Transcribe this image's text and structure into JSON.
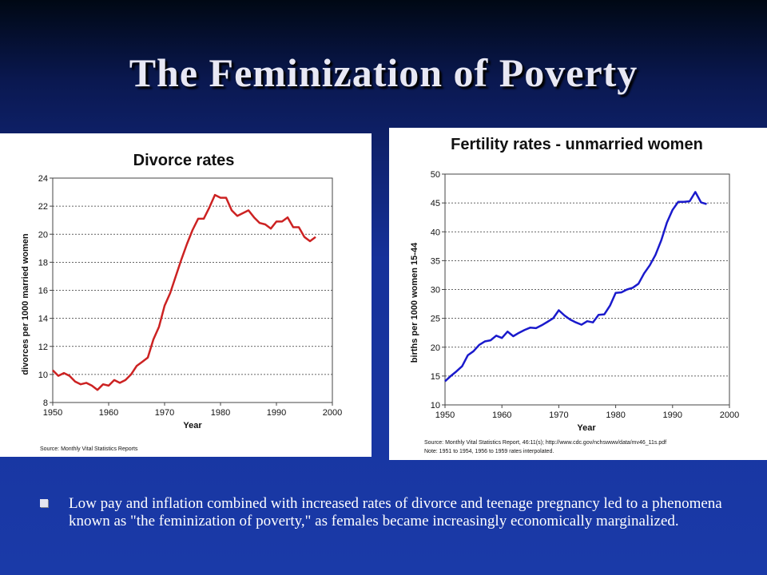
{
  "slide": {
    "title": "The Feminization of Poverty",
    "bullet": "Low pay and inflation combined with increased rates of divorce and teenage pregnancy led to a phenomena known as \"the feminization of poverty,\" as females became increasingly economically marginalized."
  },
  "colors": {
    "divorce_line": "#cc2222",
    "fertility_line": "#1a1acc",
    "background": "#1a3aa8"
  },
  "chart_data": [
    {
      "type": "line",
      "title": "Divorce rates",
      "xlabel": "Year",
      "ylabel": "divorces per 1000 married women",
      "xlim": [
        1950,
        2000
      ],
      "ylim": [
        8,
        24
      ],
      "xticks": [
        "1950",
        "1960",
        "1970",
        "1980",
        "1990",
        "2000"
      ],
      "yticks": [
        "8",
        "10",
        "12",
        "14",
        "16",
        "18",
        "20",
        "22",
        "24"
      ],
      "grid": "horizontal dashed",
      "source": "Source: Monthly Vital Statistics Reports",
      "series": [
        {
          "x": [
            1950,
            1951,
            1952,
            1953,
            1954,
            1955,
            1956,
            1957,
            1958,
            1959,
            1960,
            1961,
            1962,
            1963,
            1964,
            1965,
            1966,
            1967,
            1968,
            1969,
            1970,
            1971,
            1972,
            1973,
            1974,
            1975,
            1976,
            1977,
            1978,
            1979,
            1980,
            1981,
            1982,
            1983,
            1984,
            1985,
            1986,
            1987,
            1988,
            1989,
            1990,
            1991,
            1992,
            1993,
            1994,
            1995,
            1996,
            1997
          ],
          "y": [
            10.3,
            9.9,
            10.1,
            9.9,
            9.5,
            9.3,
            9.4,
            9.2,
            8.9,
            9.3,
            9.2,
            9.6,
            9.4,
            9.6,
            10.0,
            10.6,
            10.9,
            11.2,
            12.5,
            13.4,
            14.9,
            15.8,
            17.0,
            18.2,
            19.3,
            20.3,
            21.1,
            21.1,
            21.9,
            22.8,
            22.6,
            22.6,
            21.7,
            21.3,
            21.5,
            21.7,
            21.2,
            20.8,
            20.7,
            20.4,
            20.9,
            20.9,
            21.2,
            20.5,
            20.5,
            19.8,
            19.5,
            19.8
          ]
        }
      ]
    },
    {
      "type": "line",
      "title": "Fertility rates - unmarried women",
      "xlabel": "Year",
      "ylabel": "births per 1000 women 15-44",
      "xlim": [
        1950,
        2000
      ],
      "ylim": [
        10,
        50
      ],
      "xticks": [
        "1950",
        "1960",
        "1970",
        "1980",
        "1990",
        "2000"
      ],
      "yticks": [
        "10",
        "15",
        "20",
        "25",
        "30",
        "35",
        "40",
        "45",
        "50"
      ],
      "grid": "horizontal dashed",
      "source": "Source: Monthly Vital Statistics Report, 46:11(s); http://www.cdc.gov/nchswww/data/mv46_11s.pdf",
      "note": "Note:  1951 to 1954, 1956 to 1959 rates interpolated.",
      "series": [
        {
          "x": [
            1950,
            1951,
            1952,
            1953,
            1954,
            1955,
            1956,
            1957,
            1958,
            1959,
            1960,
            1961,
            1962,
            1963,
            1964,
            1965,
            1966,
            1967,
            1968,
            1969,
            1970,
            1971,
            1972,
            1973,
            1974,
            1975,
            1976,
            1977,
            1978,
            1979,
            1980,
            1981,
            1982,
            1983,
            1984,
            1985,
            1986,
            1987,
            1988,
            1989,
            1990,
            1991,
            1992,
            1993,
            1994,
            1995,
            1996
          ],
          "y": [
            14.1,
            15.0,
            15.8,
            16.7,
            18.6,
            19.3,
            20.4,
            21.0,
            21.2,
            22.0,
            21.6,
            22.7,
            21.9,
            22.5,
            23.0,
            23.4,
            23.3,
            23.8,
            24.4,
            25.0,
            26.4,
            25.5,
            24.8,
            24.3,
            23.9,
            24.5,
            24.3,
            25.6,
            25.7,
            27.2,
            29.4,
            29.5,
            30.0,
            30.3,
            31.0,
            32.8,
            34.2,
            36.0,
            38.5,
            41.6,
            43.8,
            45.2,
            45.2,
            45.3,
            46.9,
            45.1,
            44.8
          ]
        }
      ]
    }
  ]
}
